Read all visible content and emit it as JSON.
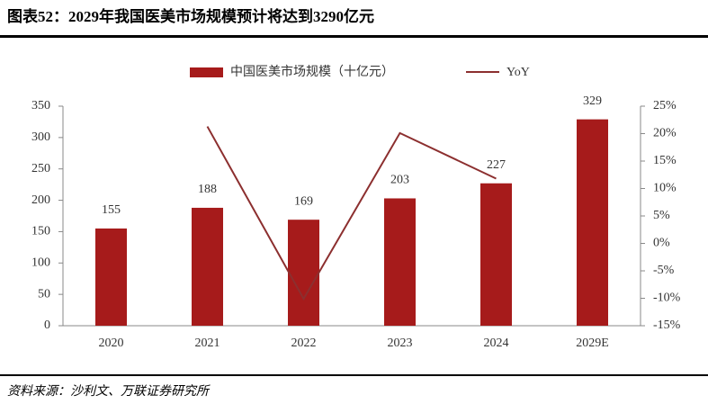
{
  "chart_data": {
    "type": "bar",
    "title": "图表52：2029年我国医美市场规模预计将达到3290亿元",
    "source": "资料来源：沙利文、万联证券研究所",
    "categories": [
      "2020",
      "2021",
      "2022",
      "2023",
      "2024",
      "2029E"
    ],
    "series": [
      {
        "name": "中国医美市场规模（十亿元）",
        "type": "bar",
        "color": "#a61b1b",
        "values": [
          155,
          188,
          169,
          203,
          227,
          329
        ]
      },
      {
        "name": "YoY",
        "type": "line",
        "axis": "y2",
        "color": "#8c2f2f",
        "values": [
          null,
          21.3,
          -10.1,
          20.1,
          11.8,
          null
        ]
      }
    ],
    "ylim": [
      0,
      350
    ],
    "yticks": [
      0,
      50,
      100,
      150,
      200,
      250,
      300,
      350
    ],
    "y2lim": [
      -15,
      25
    ],
    "y2ticks": [
      {
        "value": -15,
        "label": "-15%"
      },
      {
        "value": -10,
        "label": "-10%"
      },
      {
        "value": -5,
        "label": "-5%"
      },
      {
        "value": 0,
        "label": "0%"
      },
      {
        "value": 5,
        "label": "5%"
      },
      {
        "value": 10,
        "label": "10%"
      },
      {
        "value": 15,
        "label": "15%"
      },
      {
        "value": 20,
        "label": "20%"
      },
      {
        "value": 25,
        "label": "25%"
      }
    ],
    "grid": false,
    "legend": "top"
  }
}
